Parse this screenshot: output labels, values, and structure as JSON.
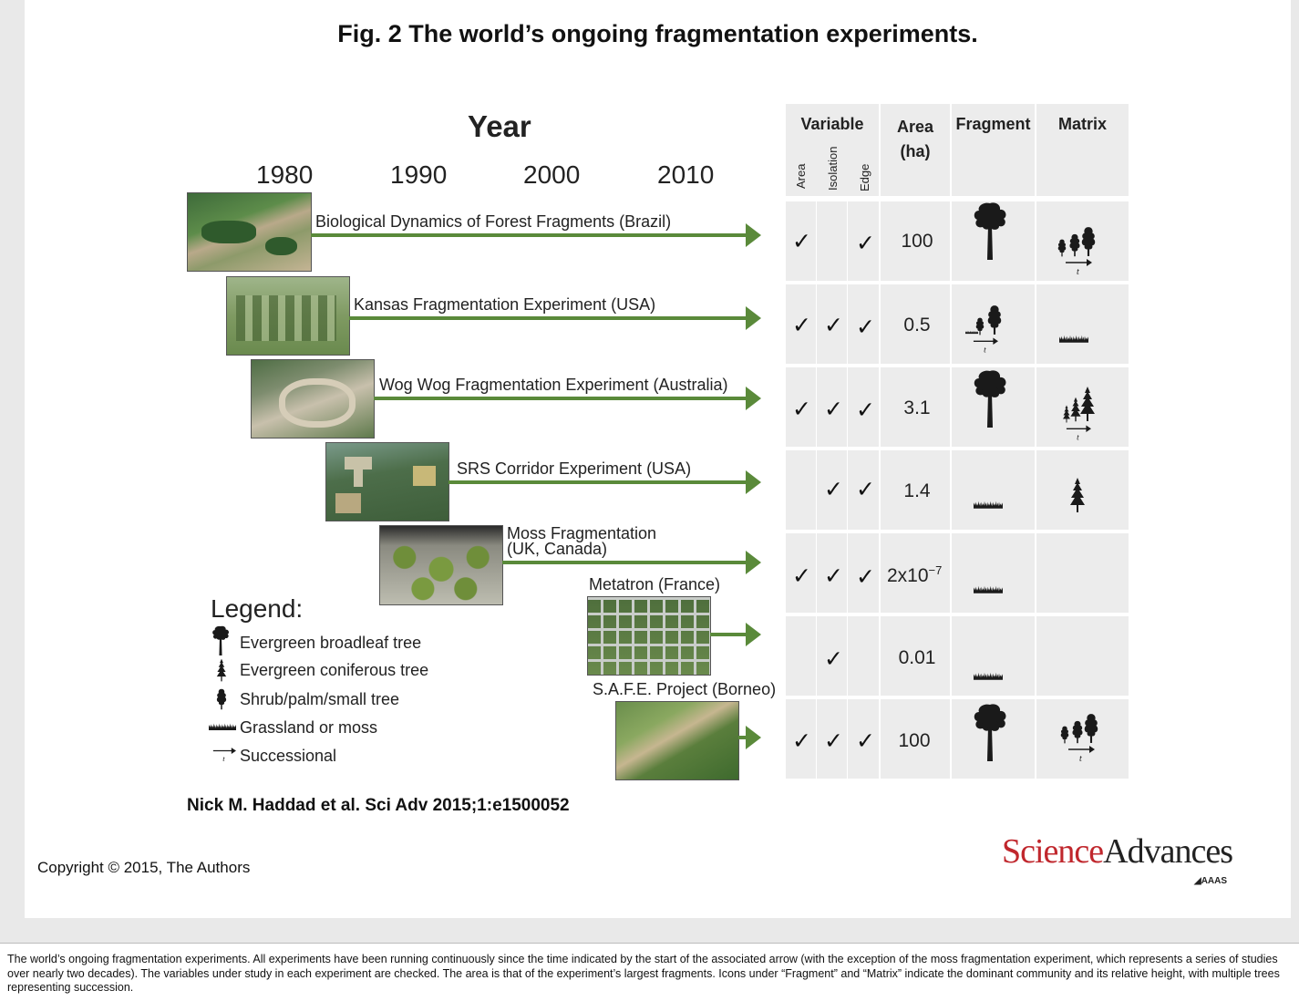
{
  "figure": {
    "title": "Fig. 2 The world’s ongoing fragmentation experiments.",
    "year_heading": "Year",
    "years": [
      "1980",
      "1990",
      "2000",
      "2010"
    ]
  },
  "experiments": [
    {
      "label": "Biological Dynamics of Forest Fragments (Brazil)",
      "start_year": 1979
    },
    {
      "label": "Kansas Fragmentation Experiment (USA)",
      "start_year": 1984
    },
    {
      "label": "Wog Wog Fragmentation Experiment (Australia)",
      "start_year": 1985
    },
    {
      "label": "SRS Corridor Experiment (USA)",
      "start_year": 1994
    },
    {
      "label_line1": "Moss Fragmentation",
      "label_line2": "(UK, Canada)",
      "start_year": 2000
    },
    {
      "label": "Metatron (France)",
      "start_year": 2010
    },
    {
      "label": "S.A.F.E. Project (Borneo)",
      "start_year": 2011
    }
  ],
  "table": {
    "headers": {
      "variable": "Variable",
      "area_line1": "Area",
      "area_line2": "(ha)",
      "fragment": "Fragment",
      "matrix": "Matrix"
    },
    "variable_subheaders": [
      "Area",
      "Isolation",
      "Edge"
    ],
    "check_mark": "✓",
    "rows": [
      {
        "area": true,
        "isolation": false,
        "edge": true,
        "area_ha": "100",
        "fragment": "broadleaf-tree",
        "matrix": "successional-shrub"
      },
      {
        "area": true,
        "isolation": true,
        "edge": true,
        "area_ha": "0.5",
        "fragment": "successional-shrub",
        "matrix": "grassland"
      },
      {
        "area": true,
        "isolation": true,
        "edge": true,
        "area_ha": "3.1",
        "fragment": "broadleaf-tree",
        "matrix": "successional-conifer"
      },
      {
        "area": false,
        "isolation": true,
        "edge": true,
        "area_ha": "1.4",
        "fragment": "grassland",
        "matrix": "conifer-tree"
      },
      {
        "area": true,
        "isolation": true,
        "edge": true,
        "area_ha_base": "2x10",
        "area_ha_exp": "−7",
        "fragment": "grassland",
        "matrix": ""
      },
      {
        "area": false,
        "isolation": true,
        "edge": false,
        "area_ha": "0.01",
        "fragment": "grassland",
        "matrix": ""
      },
      {
        "area": true,
        "isolation": true,
        "edge": true,
        "area_ha": "100",
        "fragment": "broadleaf-tree",
        "matrix": "successional-shrub"
      }
    ]
  },
  "legend": {
    "title": "Legend:",
    "items": [
      {
        "icon": "broadleaf-tree-icon",
        "label": "Evergreen broadleaf tree"
      },
      {
        "icon": "conifer-tree-icon",
        "label": "Evergreen coniferous tree"
      },
      {
        "icon": "shrub-icon",
        "label": "Shrub/palm/small tree"
      },
      {
        "icon": "grass-icon",
        "label": "Grassland or moss"
      },
      {
        "icon": "successional-icon",
        "label": "Successional"
      }
    ]
  },
  "citation": "Nick M. Haddad et al. Sci Adv 2015;1:e1500052",
  "copyright": "Copyright © 2015, The Authors",
  "logo": {
    "part1": "Science",
    "part2": "Advances",
    "sub": "AAAS",
    "color1": "#c0272d",
    "color2": "#222222"
  },
  "colors": {
    "arrow": "#5a8a3a",
    "table_cell": "#ececec"
  },
  "caption": "The world’s ongoing fragmentation experiments. All experiments have been running continuously since the time indicated by the start of the associated arrow (with the exception of the moss fragmentation experiment, which represents a series of studies over nearly two decades). The variables under study in each experiment are checked. The area is that of the experiment’s largest fragments. Icons under “Fragment” and “Matrix” indicate the dominant community and its relative height, with multiple trees representing succession."
}
